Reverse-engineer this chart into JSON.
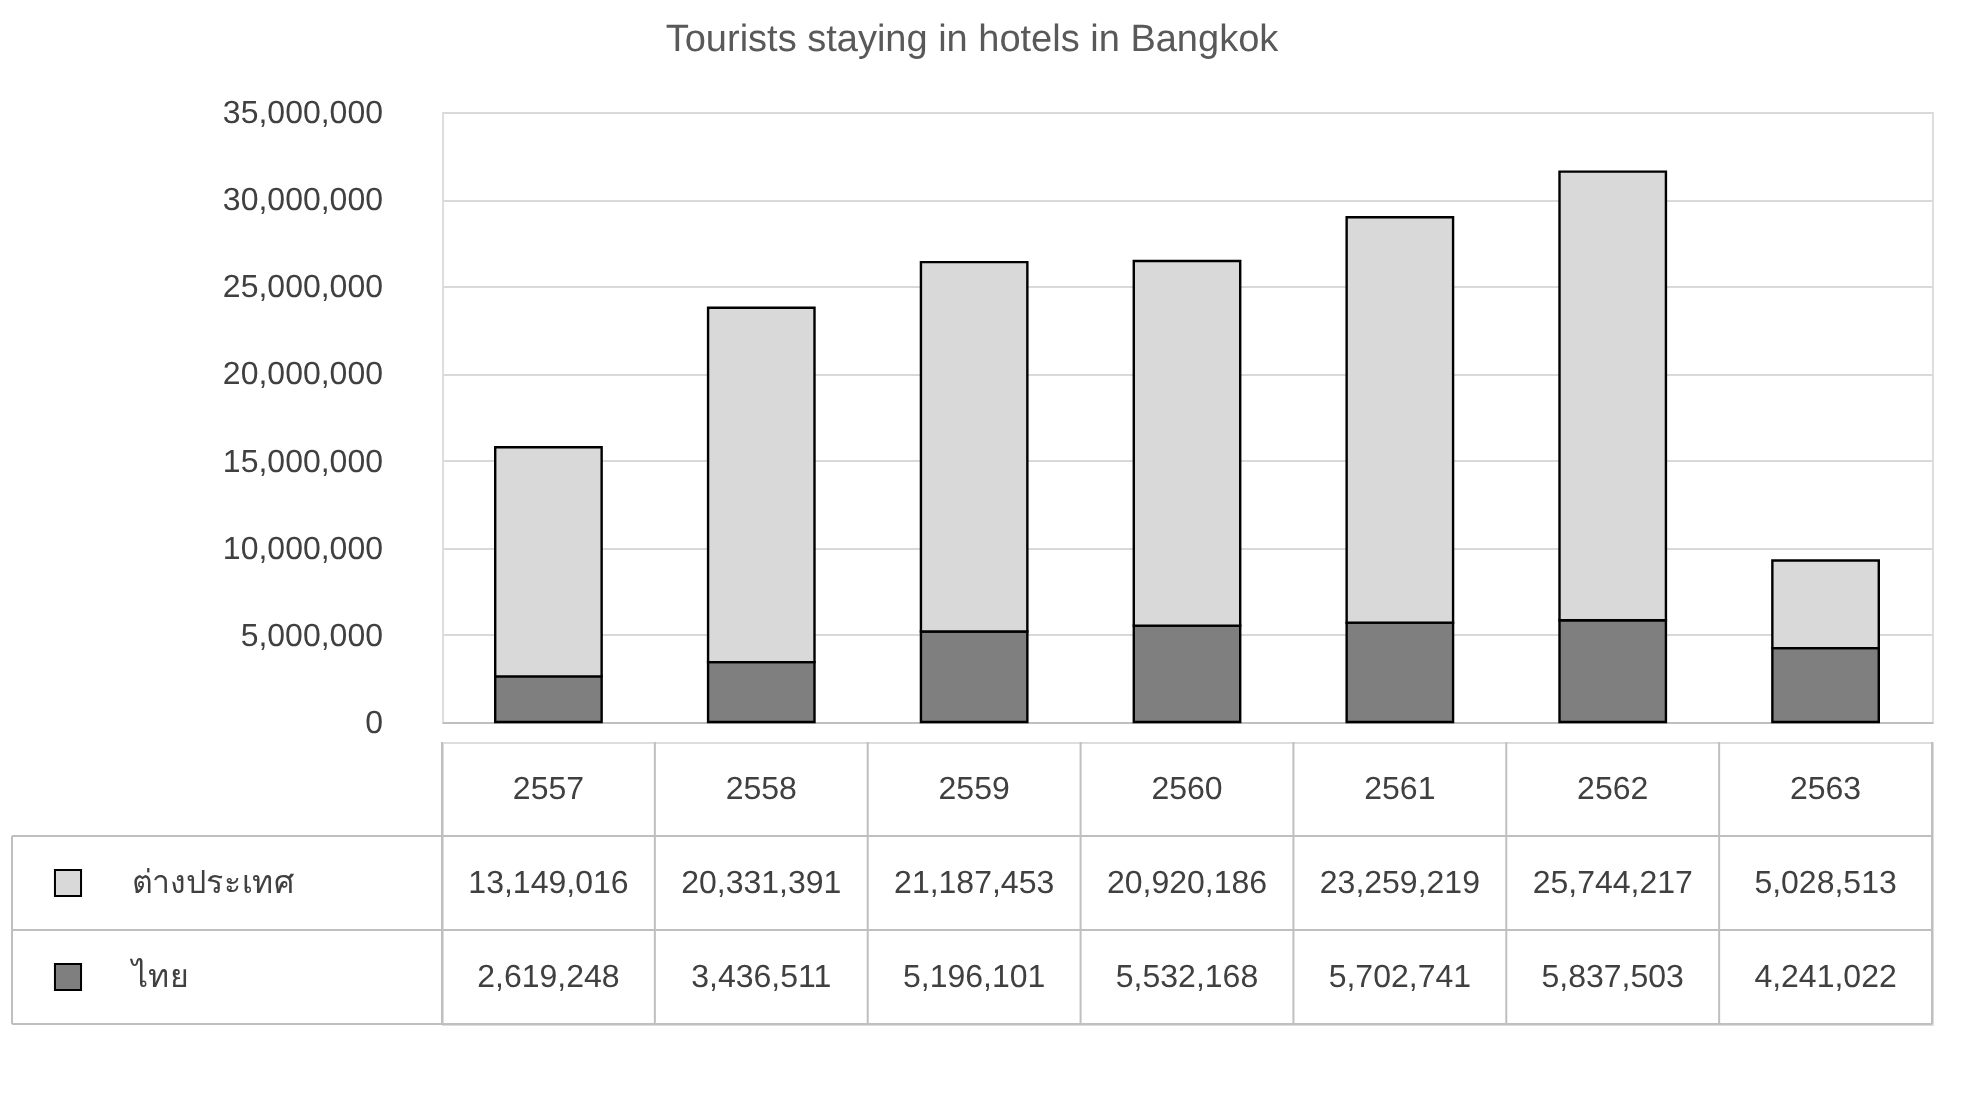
{
  "chart_data": {
    "type": "bar",
    "title": "Tourists staying in hotels in Bangkok",
    "categories": [
      "2557",
      "2558",
      "2559",
      "2560",
      "2561",
      "2562",
      "2563"
    ],
    "series": [
      {
        "name": "ไทย",
        "color": "#7f7f7f",
        "values": [
          2619248,
          3436511,
          5196101,
          5532168,
          5702741,
          5837503,
          4241022
        ],
        "value_labels": [
          "2,619,248",
          "3,436,511",
          "5,196,101",
          "5,532,168",
          "5,702,741",
          "5,837,503",
          "4,241,022"
        ]
      },
      {
        "name": "ต่างประเทศ",
        "color": "#d9d9d9",
        "values": [
          13149016,
          20331391,
          21187453,
          20920186,
          23259219,
          25744217,
          5028513
        ],
        "value_labels": [
          "13,149,016",
          "20,331,391",
          "21,187,453",
          "20,920,186",
          "23,259,219",
          "25,744,217",
          "5,028,513"
        ]
      }
    ],
    "stacked": true,
    "legend": "bottom",
    "grid": "y",
    "ylim": [
      0,
      35000000
    ],
    "yticks": [
      0,
      {
        "value": 5000000,
        "label": "5,000,000"
      },
      {
        "value": 10000000,
        "label": "10,000,000"
      },
      {
        "value": 15000000,
        "label": "15,000,000"
      },
      {
        "value": 20000000,
        "label": "20,000,000"
      },
      {
        "value": 25000000,
        "label": "25,000,000"
      },
      {
        "value": 30000000,
        "label": "30,000,000"
      },
      {
        "value": 35000000,
        "label": "35,000,000"
      }
    ]
  }
}
